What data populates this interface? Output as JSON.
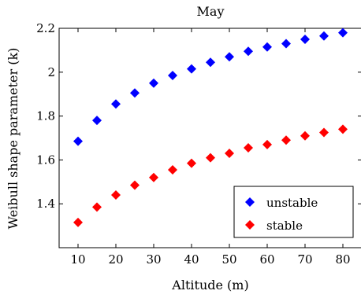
{
  "chart_data": {
    "type": "scatter",
    "title": "May",
    "xlabel": "Altitude (m)",
    "ylabel": "Weibull shape parameter (k)",
    "xlim": [
      5,
      85
    ],
    "ylim": [
      1.2,
      2.2
    ],
    "xticks": [
      10,
      20,
      30,
      40,
      50,
      60,
      70,
      80
    ],
    "yticks": [
      1.4,
      1.6,
      1.8,
      2,
      2.2
    ],
    "xtick_labels": [
      "10",
      "20",
      "30",
      "40",
      "50",
      "60",
      "70",
      "80"
    ],
    "ytick_labels": [
      "1.4",
      "1.6",
      "1.8",
      "2",
      "2.2"
    ],
    "grid": false,
    "legend": "bottom-right",
    "series": [
      {
        "name": "unstable",
        "color": "#0000ff",
        "marker": "diamond",
        "x": [
          10,
          15,
          20,
          25,
          30,
          35,
          40,
          45,
          50,
          55,
          60,
          65,
          70,
          75,
          80
        ],
        "y": [
          1.685,
          1.78,
          1.855,
          1.905,
          1.95,
          1.985,
          2.015,
          2.045,
          2.07,
          2.095,
          2.115,
          2.13,
          2.15,
          2.165,
          2.18
        ]
      },
      {
        "name": "stable",
        "color": "#ff0000",
        "marker": "diamond",
        "x": [
          10,
          15,
          20,
          25,
          30,
          35,
          40,
          45,
          50,
          55,
          60,
          65,
          70,
          75,
          80
        ],
        "y": [
          1.315,
          1.385,
          1.44,
          1.485,
          1.52,
          1.555,
          1.585,
          1.61,
          1.63,
          1.655,
          1.67,
          1.69,
          1.71,
          1.725,
          1.74
        ]
      }
    ]
  }
}
